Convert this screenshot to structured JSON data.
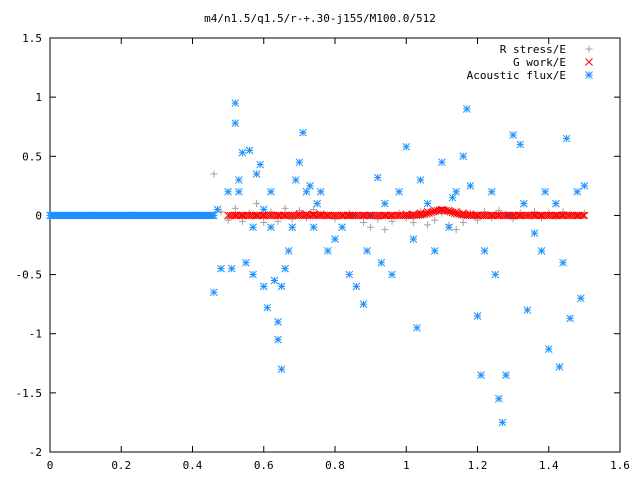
{
  "chart_data": {
    "type": "scatter",
    "title": "m4/n1.5/q1.5/r-+.30-j155/M100.0/512",
    "xlabel": "",
    "ylabel": "",
    "xlim": [
      0,
      1.6
    ],
    "ylim": [
      -2,
      1.5
    ],
    "grid": false,
    "legend_placement": "top-right",
    "x_ticks": [
      "0",
      "0.2",
      "0.4",
      "0.6",
      "0.8",
      "1",
      "1.2",
      "1.4",
      "1.6"
    ],
    "y_ticks": [
      "1.5",
      "1",
      "0.5",
      "0",
      "-0.5",
      "-1",
      "-1.5",
      "-2"
    ],
    "x_tick_values": [
      0,
      0.2,
      0.4,
      0.6,
      0.8,
      1.0,
      1.2,
      1.4,
      1.6
    ],
    "y_tick_values": [
      1.5,
      1.0,
      0.5,
      0,
      -0.5,
      -1.0,
      -1.5,
      -2.0
    ],
    "series": [
      {
        "name": "R stress/E",
        "marker": "plus",
        "color": "#a0a0a0",
        "x": [
          0.46,
          0.48,
          0.5,
          0.52,
          0.54,
          0.56,
          0.58,
          0.6,
          0.62,
          0.64,
          0.66,
          0.68,
          0.7,
          0.72,
          0.74,
          0.76,
          0.8,
          0.84,
          0.88,
          0.9,
          0.92,
          0.94,
          0.96,
          0.98,
          1.0,
          1.02,
          1.04,
          1.06,
          1.08,
          1.1,
          1.12,
          1.14,
          1.16,
          1.18,
          1.2,
          1.22,
          1.24,
          1.26,
          1.28,
          1.3,
          1.32,
          1.34,
          1.36,
          1.38,
          1.4,
          1.42,
          1.44,
          1.46,
          1.48,
          1.5
        ],
        "y": [
          0.35,
          0.03,
          -0.04,
          0.06,
          -0.05,
          0.02,
          0.1,
          -0.06,
          0.03,
          -0.05,
          0.06,
          -0.03,
          0.04,
          -0.02,
          0.05,
          0.01,
          -0.03,
          0.02,
          -0.06,
          -0.1,
          -0.03,
          -0.12,
          -0.05,
          0.02,
          -0.02,
          -0.06,
          0.03,
          -0.08,
          -0.04,
          0.02,
          -0.08,
          -0.12,
          -0.06,
          0.02,
          -0.04,
          0.03,
          -0.02,
          0.04,
          0.01,
          -0.03,
          0.02,
          0.0,
          0.03,
          -0.02,
          0.02,
          -0.01,
          0.03,
          0.01,
          0.0,
          0.02
        ]
      },
      {
        "name": "G work/E",
        "marker": "cross",
        "color": "#ff0000",
        "x": [
          0.5,
          0.52,
          0.54,
          0.56,
          0.58,
          0.6,
          0.62,
          0.64,
          0.66,
          0.68,
          0.7,
          0.72,
          0.74,
          0.76,
          0.78,
          0.8,
          0.82,
          0.84,
          0.86,
          0.88,
          0.9,
          0.92,
          0.94,
          0.96,
          0.98,
          1.0,
          1.02,
          1.04,
          1.06,
          1.08,
          1.1,
          1.12,
          1.14,
          1.16,
          1.18,
          1.2,
          1.22,
          1.24,
          1.26,
          1.28,
          1.3,
          1.32,
          1.34,
          1.36,
          1.38,
          1.4,
          1.42,
          1.44,
          1.46,
          1.48,
          1.5
        ],
        "y": [
          0.0,
          0.0,
          0.0,
          0.0,
          0.0,
          0.0,
          0.0,
          0.0,
          0.0,
          0.0,
          0.01,
          0.01,
          0.01,
          0.01,
          0.0,
          0.0,
          0.0,
          0.0,
          0.0,
          0.0,
          0.0,
          0.0,
          0.0,
          0.0,
          0.0,
          0.01,
          0.01,
          0.02,
          0.03,
          0.04,
          0.05,
          0.04,
          0.03,
          0.02,
          0.01,
          0.0,
          0.0,
          0.0,
          0.0,
          0.0,
          0.0,
          0.0,
          0.0,
          0.0,
          0.0,
          0.0,
          0.0,
          0.0,
          0.0,
          0.0,
          0.0
        ]
      },
      {
        "name": "Acoustic flux/E",
        "marker": "star",
        "color": "#1e90ff",
        "x": [
          0.46,
          0.47,
          0.48,
          0.5,
          0.51,
          0.52,
          0.52,
          0.53,
          0.53,
          0.54,
          0.55,
          0.56,
          0.57,
          0.57,
          0.58,
          0.59,
          0.6,
          0.6,
          0.61,
          0.62,
          0.62,
          0.63,
          0.64,
          0.64,
          0.65,
          0.65,
          0.66,
          0.67,
          0.68,
          0.69,
          0.7,
          0.71,
          0.72,
          0.73,
          0.74,
          0.75,
          0.76,
          0.78,
          0.8,
          0.82,
          0.84,
          0.85,
          0.86,
          0.88,
          0.89,
          0.9,
          0.92,
          0.93,
          0.94,
          0.96,
          0.98,
          1.0,
          1.01,
          1.02,
          1.03,
          1.04,
          1.06,
          1.08,
          1.1,
          1.12,
          1.13,
          1.14,
          1.16,
          1.17,
          1.18,
          1.2,
          1.21,
          1.22,
          1.24,
          1.25,
          1.26,
          1.27,
          1.28,
          1.29,
          1.3,
          1.32,
          1.33,
          1.34,
          1.36,
          1.38,
          1.39,
          1.4,
          1.42,
          1.43,
          1.44,
          1.45,
          1.46,
          1.48,
          1.49,
          1.5
        ],
        "y": [
          -0.65,
          0.05,
          -0.45,
          0.2,
          -0.45,
          0.95,
          0.78,
          0.2,
          0.3,
          0.53,
          -0.4,
          0.55,
          -0.5,
          -0.1,
          0.35,
          0.43,
          -0.6,
          0.05,
          -0.78,
          0.2,
          -0.1,
          -0.55,
          -0.9,
          -1.05,
          -0.6,
          -1.3,
          -0.45,
          -0.3,
          -0.1,
          0.3,
          0.45,
          0.7,
          0.2,
          0.25,
          -0.1,
          0.1,
          0.2,
          -0.3,
          -0.2,
          -0.1,
          -0.5,
          0.0,
          -0.6,
          -0.75,
          -0.3,
          0.0,
          0.32,
          -0.4,
          0.1,
          -0.5,
          0.2,
          0.58,
          0.0,
          -0.2,
          -0.95,
          0.3,
          0.1,
          -0.3,
          0.45,
          -0.1,
          0.15,
          0.2,
          0.5,
          0.9,
          0.25,
          -0.85,
          -1.35,
          -0.3,
          0.2,
          -0.5,
          -1.55,
          -1.75,
          -1.35,
          0.0,
          0.68,
          0.6,
          0.1,
          -0.8,
          -0.15,
          -0.3,
          0.2,
          -1.13,
          0.1,
          -1.28,
          -0.4,
          0.65,
          -0.87,
          0.2,
          -0.7,
          0.25
        ]
      }
    ],
    "baseline_band": {
      "x_from": 0.0,
      "x_to": 0.46,
      "y": 0,
      "series": "Acoustic flux/E"
    }
  }
}
